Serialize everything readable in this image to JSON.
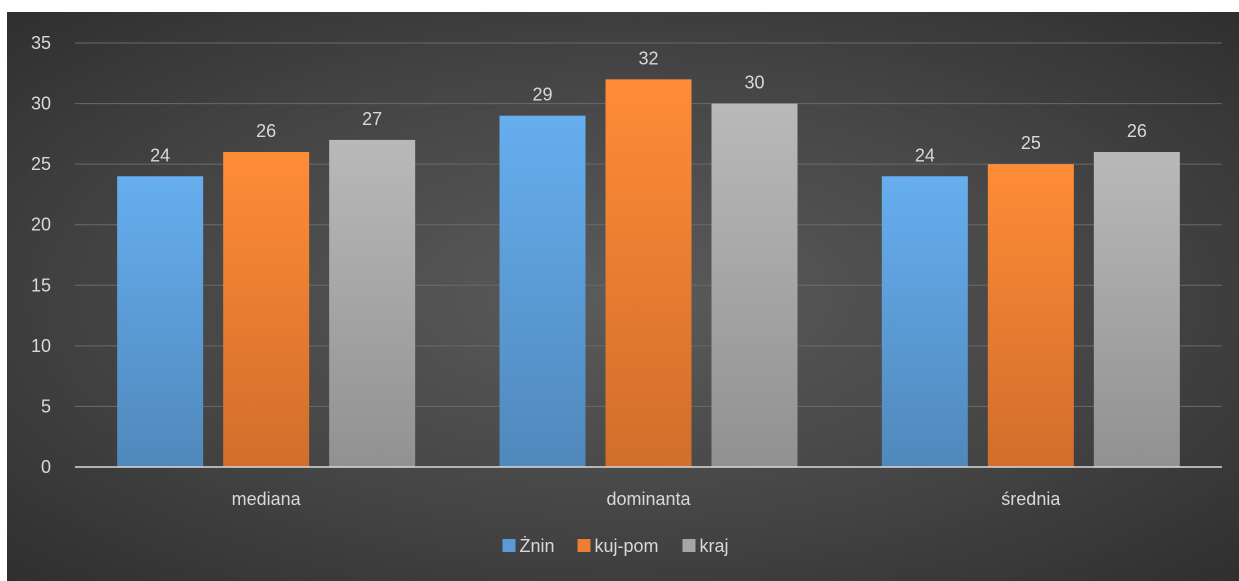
{
  "chart_data": {
    "type": "bar",
    "title": "",
    "xlabel": "",
    "ylabel": "",
    "categories": [
      "mediana",
      "dominanta",
      "średnia"
    ],
    "series": [
      {
        "name": "Żnin",
        "values": [
          24,
          29,
          24
        ],
        "color": "#5b9bd5"
      },
      {
        "name": "kuj-pom",
        "values": [
          26,
          32,
          25
        ],
        "color": "#ed7d31"
      },
      {
        "name": "kraj",
        "values": [
          27,
          30,
          26
        ],
        "color": "#a5a5a5"
      }
    ],
    "ylim": [
      0,
      35
    ],
    "yticks": [
      0,
      5,
      10,
      15,
      20,
      25,
      30,
      35
    ],
    "grid": true,
    "legend_position": "bottom",
    "data_labels": true,
    "background": "#404040"
  }
}
